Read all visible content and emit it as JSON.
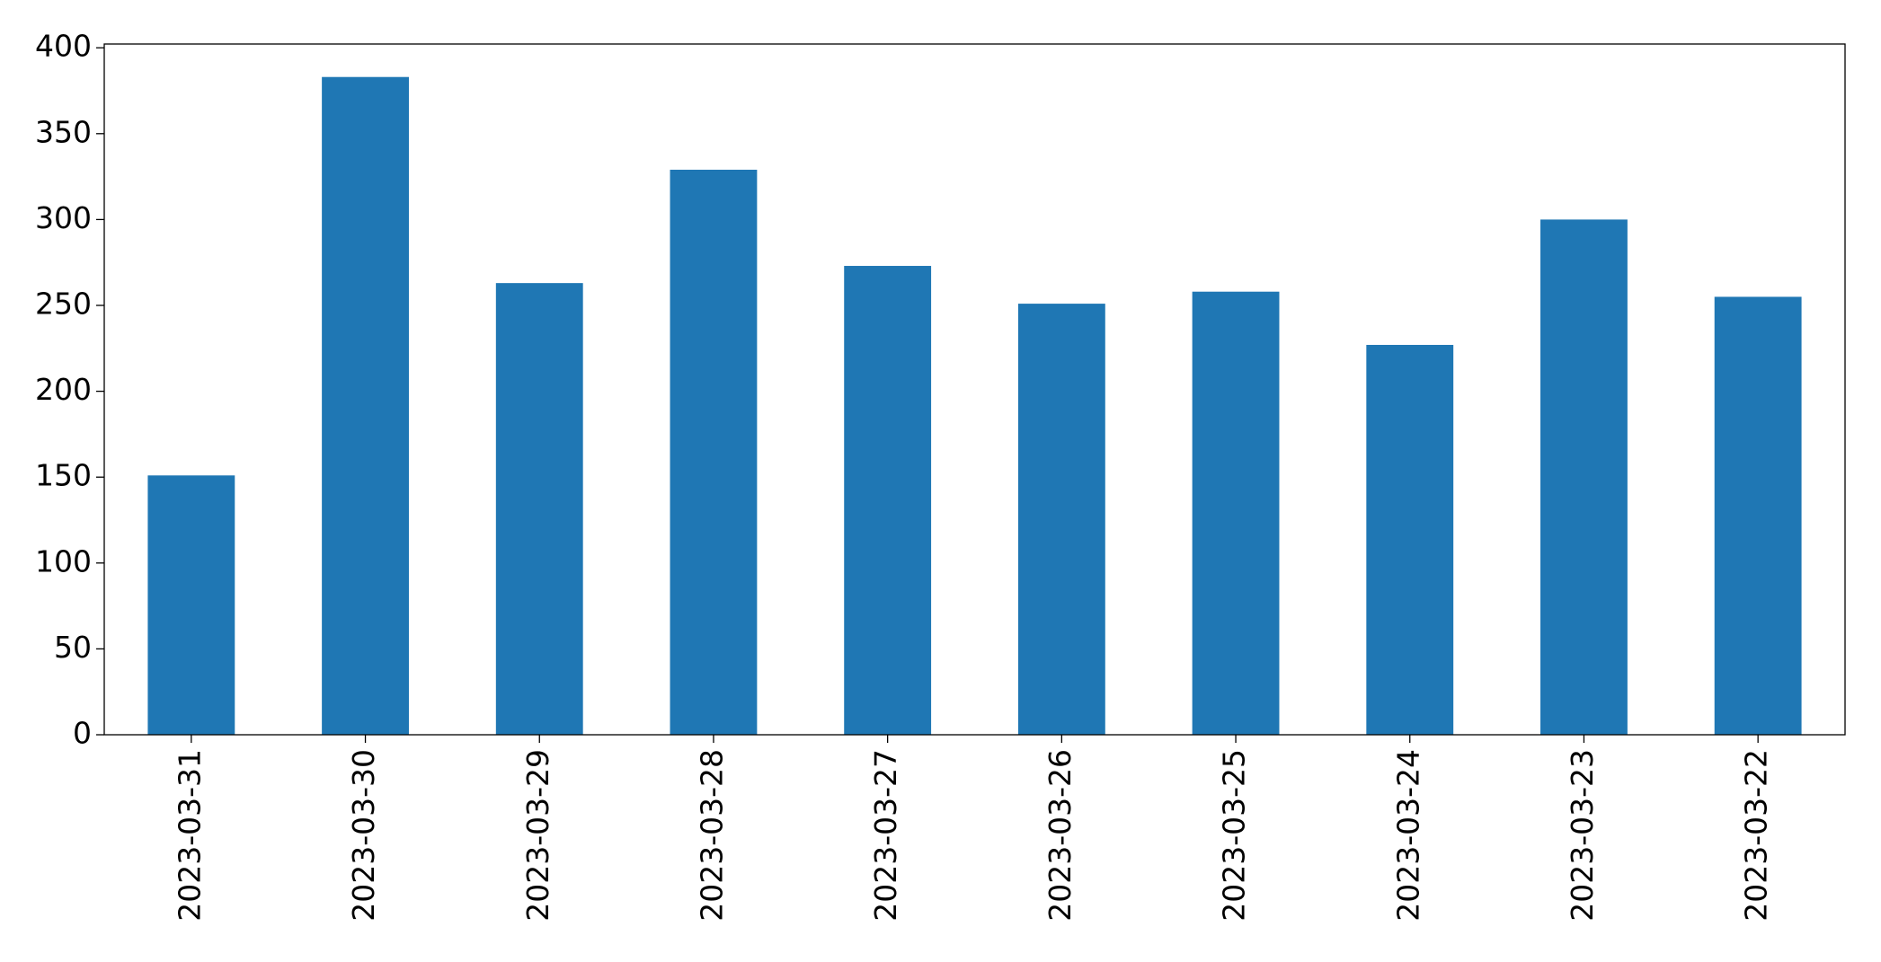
{
  "chart_data": {
    "type": "bar",
    "categories": [
      "2023-03-31",
      "2023-03-30",
      "2023-03-29",
      "2023-03-28",
      "2023-03-27",
      "2023-03-26",
      "2023-03-25",
      "2023-03-24",
      "2023-03-23",
      "2023-03-22"
    ],
    "values": [
      151,
      383,
      263,
      329,
      273,
      251,
      258,
      227,
      300,
      255
    ],
    "color": "#1f77b4",
    "ylim": [
      0,
      402.2
    ],
    "yticks": [
      0,
      50,
      100,
      150,
      200,
      250,
      300,
      350,
      400
    ],
    "grid": false
  }
}
